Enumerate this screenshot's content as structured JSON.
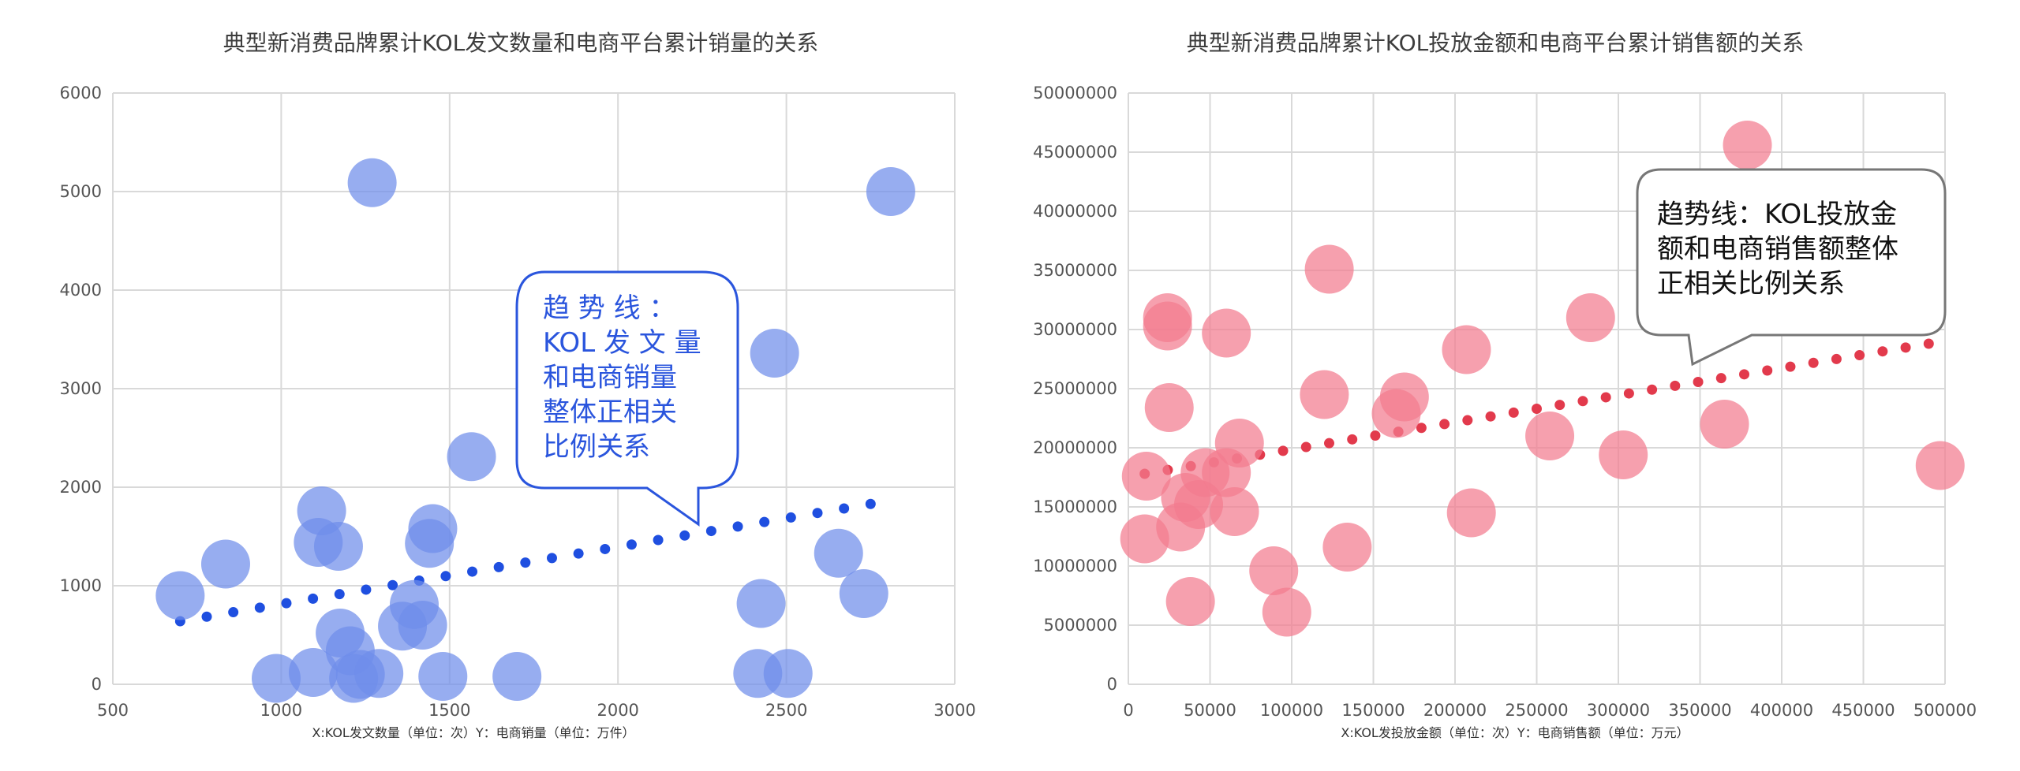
{
  "chart_data": [
    {
      "type": "scatter",
      "title": "典型新消费品牌累计KOL发文数量和电商平台累计销量的关系",
      "xlabel": "X:KOL发文数量（单位：次）Y：电商销量（单位：万件）",
      "xlim": [
        500,
        3000
      ],
      "ylim": [
        0,
        6000
      ],
      "xticks": [
        "500",
        "1000",
        "1500",
        "2000",
        "2500",
        "3000"
      ],
      "yticks": [
        "0",
        "1000",
        "2000",
        "3000",
        "4000",
        "5000",
        "6000"
      ],
      "grid": true,
      "color": "#6f8eea",
      "trend_color": "#1f4fe0",
      "trendline": {
        "x": [
          700,
          2750
        ],
        "y": [
          640,
          1830
        ]
      },
      "annotation": [
        "趋 势 线 ：",
        "KOL 发 文 量",
        "和电商销量",
        "整体正相关",
        "比例关系"
      ],
      "annotation_color": "#2a55dd",
      "points": [
        {
          "x": 700,
          "y": 900
        },
        {
          "x": 835,
          "y": 1220
        },
        {
          "x": 985,
          "y": 60
        },
        {
          "x": 1095,
          "y": 120
        },
        {
          "x": 1110,
          "y": 1440
        },
        {
          "x": 1120,
          "y": 1760
        },
        {
          "x": 1170,
          "y": 1400
        },
        {
          "x": 1175,
          "y": 520
        },
        {
          "x": 1205,
          "y": 340
        },
        {
          "x": 1215,
          "y": 60
        },
        {
          "x": 1235,
          "y": 100
        },
        {
          "x": 1290,
          "y": 110
        },
        {
          "x": 1270,
          "y": 5090
        },
        {
          "x": 1360,
          "y": 590
        },
        {
          "x": 1395,
          "y": 810
        },
        {
          "x": 1420,
          "y": 600
        },
        {
          "x": 1440,
          "y": 1430
        },
        {
          "x": 1450,
          "y": 1580
        },
        {
          "x": 1480,
          "y": 80
        },
        {
          "x": 1565,
          "y": 2310
        },
        {
          "x": 1700,
          "y": 80
        },
        {
          "x": 2415,
          "y": 110
        },
        {
          "x": 2425,
          "y": 820
        },
        {
          "x": 2465,
          "y": 3360
        },
        {
          "x": 2505,
          "y": 110
        },
        {
          "x": 2655,
          "y": 1330
        },
        {
          "x": 2730,
          "y": 920
        },
        {
          "x": 2810,
          "y": 5000
        }
      ]
    },
    {
      "type": "scatter",
      "title": "典型新消费品牌累计KOL投放金额和电商平台累计销售额的关系",
      "xlabel": "X:KOL发投放金额（单位：次）Y：电商销售额（单位：万元）",
      "xlim": [
        0,
        500000
      ],
      "ylim": [
        0,
        50000000
      ],
      "xticks": [
        "0",
        "50000",
        "100000",
        "150000",
        "200000",
        "250000",
        "300000",
        "350000",
        "400000",
        "450000",
        "500000"
      ],
      "yticks": [
        "0",
        "5000000",
        "10000000",
        "15000000",
        "20000000",
        "25000000",
        "30000000",
        "35000000",
        "40000000",
        "45000000",
        "50000000"
      ],
      "grid": true,
      "color": "#f27c8f",
      "trend_color": "#e23a4c",
      "trendline": {
        "x": [
          10000,
          490000
        ],
        "y": [
          17800000,
          28800000
        ]
      },
      "annotation": [
        "趋势线：KOL投放金",
        "额和电商销售额整体",
        "正相关比例关系"
      ],
      "annotation_color": "#111111",
      "points": [
        {
          "x": 10000,
          "y": 12300000
        },
        {
          "x": 11000,
          "y": 17600000
        },
        {
          "x": 24000,
          "y": 31000000
        },
        {
          "x": 24000,
          "y": 30300000
        },
        {
          "x": 25000,
          "y": 23400000
        },
        {
          "x": 32000,
          "y": 13300000
        },
        {
          "x": 35000,
          "y": 15800000
        },
        {
          "x": 38000,
          "y": 7000000
        },
        {
          "x": 43000,
          "y": 15200000
        },
        {
          "x": 47000,
          "y": 17900000
        },
        {
          "x": 60000,
          "y": 29700000
        },
        {
          "x": 60000,
          "y": 17900000
        },
        {
          "x": 65000,
          "y": 14600000
        },
        {
          "x": 68000,
          "y": 20400000
        },
        {
          "x": 89000,
          "y": 9600000
        },
        {
          "x": 97000,
          "y": 6100000
        },
        {
          "x": 120000,
          "y": 24500000
        },
        {
          "x": 123000,
          "y": 35100000
        },
        {
          "x": 134000,
          "y": 11600000
        },
        {
          "x": 164000,
          "y": 22900000
        },
        {
          "x": 169000,
          "y": 24300000
        },
        {
          "x": 207000,
          "y": 28300000
        },
        {
          "x": 210000,
          "y": 14500000
        },
        {
          "x": 258000,
          "y": 21000000
        },
        {
          "x": 283000,
          "y": 31000000
        },
        {
          "x": 303000,
          "y": 19400000
        },
        {
          "x": 365000,
          "y": 22000000
        },
        {
          "x": 379000,
          "y": 45600000
        },
        {
          "x": 497000,
          "y": 18500000
        }
      ]
    }
  ]
}
